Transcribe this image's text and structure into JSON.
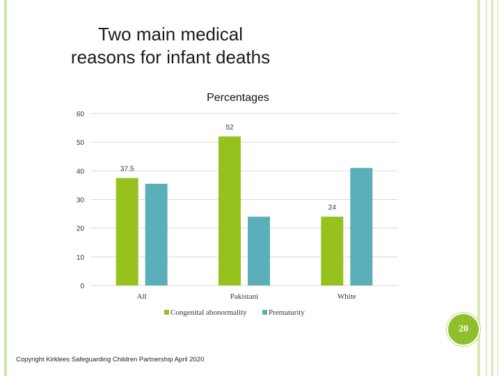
{
  "slide": {
    "title": "Two main medical reasons for infant deaths",
    "page_number": "20",
    "copyright": "Copyright Kirklees Safeguarding Children Partnership April 2020"
  },
  "colors": {
    "congenital": "#96c11f",
    "prematurity": "#5bafba",
    "accent": "#8fbf2a"
  },
  "chart_data": {
    "type": "bar",
    "title": "Percentages",
    "categories": [
      "All",
      "Pakistani",
      "White"
    ],
    "series": [
      {
        "name": "Congenital abonormality",
        "values": [
          37.5,
          52,
          24
        ],
        "data_labels": [
          "37.5",
          "52",
          "24"
        ]
      },
      {
        "name": "Prematurity",
        "values": [
          35.5,
          24,
          41
        ],
        "data_labels": [
          "",
          "",
          ""
        ]
      }
    ],
    "ylim": [
      0,
      60
    ],
    "yticks": [
      "0",
      "10",
      "20",
      "30",
      "40",
      "50",
      "60"
    ],
    "grid": true,
    "legend": "bottom"
  }
}
